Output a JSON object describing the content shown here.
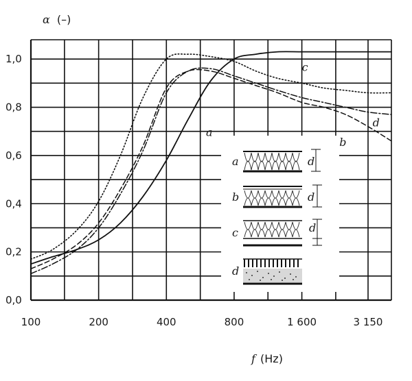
{
  "chart_data": {
    "type": "line",
    "title": "",
    "xlabel": "f (Hz)",
    "ylabel": "α (–)",
    "xlabel_var": "f",
    "xlabel_unit": "(Hz)",
    "ylabel_var": "α",
    "ylabel_unit": "(–)",
    "xscale": "log2",
    "xlim": [
      100,
      4000
    ],
    "ylim": [
      0,
      1.08
    ],
    "grid": true,
    "x_ticks": [
      {
        "value": 100,
        "label": "100"
      },
      {
        "value": 200,
        "label": "200"
      },
      {
        "value": 400,
        "label": "400"
      },
      {
        "value": 800,
        "label": "800"
      },
      {
        "value": 1600,
        "label": "1 600"
      },
      {
        "value": 3150,
        "label": "3 150"
      }
    ],
    "y_ticks": [
      {
        "value": 0.0,
        "label": "0,0"
      },
      {
        "value": 0.2,
        "label": "0,2"
      },
      {
        "value": 0.4,
        "label": "0,4"
      },
      {
        "value": 0.6,
        "label": "0,6"
      },
      {
        "value": 0.8,
        "label": "0,8"
      },
      {
        "value": 1.0,
        "label": "1,0"
      }
    ],
    "series": [
      {
        "name": "a",
        "style": "solid",
        "x": [
          100,
          125,
          160,
          200,
          250,
          315,
          400,
          500,
          630,
          800,
          1000,
          1250,
          1600,
          2000,
          2500,
          3150,
          4000
        ],
        "y": [
          0.15,
          0.18,
          0.21,
          0.25,
          0.32,
          0.43,
          0.58,
          0.75,
          0.91,
          1.0,
          1.02,
          1.03,
          1.03,
          1.03,
          1.03,
          1.03,
          1.03
        ]
      },
      {
        "name": "b",
        "style": "dashed",
        "x": [
          100,
          125,
          160,
          200,
          250,
          315,
          400,
          500,
          630,
          800,
          1000,
          1250,
          1600,
          2000,
          2500,
          3150,
          4000
        ],
        "y": [
          0.13,
          0.17,
          0.23,
          0.32,
          0.46,
          0.64,
          0.88,
          0.95,
          0.95,
          0.92,
          0.89,
          0.86,
          0.82,
          0.8,
          0.77,
          0.72,
          0.66
        ]
      },
      {
        "name": "c",
        "style": "dotted",
        "x": [
          100,
          125,
          160,
          200,
          250,
          315,
          400,
          500,
          630,
          800,
          1000,
          1250,
          1600,
          2000,
          2500,
          3150,
          4000
        ],
        "y": [
          0.17,
          0.21,
          0.29,
          0.41,
          0.6,
          0.84,
          1.0,
          1.02,
          1.01,
          0.99,
          0.95,
          0.92,
          0.9,
          0.88,
          0.87,
          0.86,
          0.86
        ]
      },
      {
        "name": "d",
        "style": "dashdot",
        "x": [
          100,
          125,
          160,
          200,
          250,
          315,
          400,
          500,
          630,
          800,
          1000,
          1250,
          1600,
          2000,
          2500,
          3150,
          4000
        ],
        "y": [
          0.11,
          0.15,
          0.21,
          0.3,
          0.44,
          0.62,
          0.86,
          0.95,
          0.96,
          0.93,
          0.9,
          0.87,
          0.84,
          0.82,
          0.8,
          0.78,
          0.77
        ]
      }
    ],
    "annotations": {
      "curve_labels": [
        {
          "text": "a",
          "x": 600,
          "y": 0.68
        },
        {
          "text": "b",
          "x": 2350,
          "y": 0.64
        },
        {
          "text": "c",
          "x": 1600,
          "y": 0.95
        },
        {
          "text": "d",
          "x": 3300,
          "y": 0.72
        }
      ],
      "legend_panel": {
        "placement": "lower-right",
        "items": [
          {
            "label": "a",
            "dim": "d",
            "construction": "porous absorber, rigid backed"
          },
          {
            "label": "b",
            "dim": "d",
            "construction": "porous absorber with cover sheet"
          },
          {
            "label": "c",
            "dim": "d",
            "construction": "porous absorber with air gap"
          },
          {
            "label": "d",
            "construction": "perforated panel over porous layer"
          }
        ]
      }
    }
  }
}
